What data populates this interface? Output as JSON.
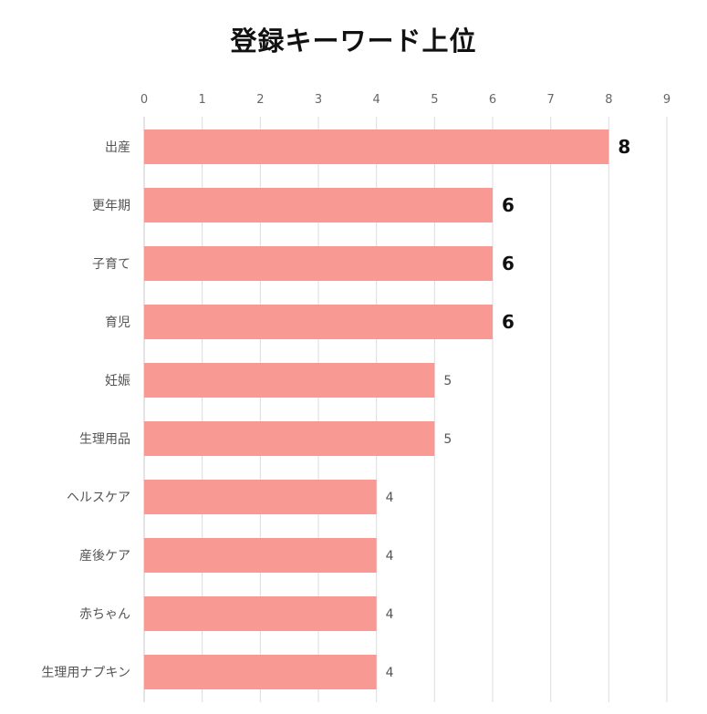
{
  "chart_data": {
    "type": "bar",
    "orientation": "horizontal",
    "title": "登録キーワード上位",
    "xlabel": "",
    "ylabel": "",
    "xlim": [
      0,
      9
    ],
    "ticks": [
      "0",
      "1",
      "2",
      "3",
      "4",
      "5",
      "6",
      "7",
      "8",
      "9"
    ],
    "categories": [
      "出産",
      "更年期",
      "子育て",
      "育児",
      "妊娠",
      "生理用品",
      "ヘルスケア",
      "産後ケア",
      "赤ちゃん",
      "生理用ナプキン"
    ],
    "values": [
      8,
      6,
      6,
      6,
      5,
      5,
      4,
      4,
      4,
      4
    ],
    "highlight_threshold": 6,
    "bar_color": "#f99994",
    "grid": true,
    "legend": "none",
    "axis_position": "top"
  }
}
